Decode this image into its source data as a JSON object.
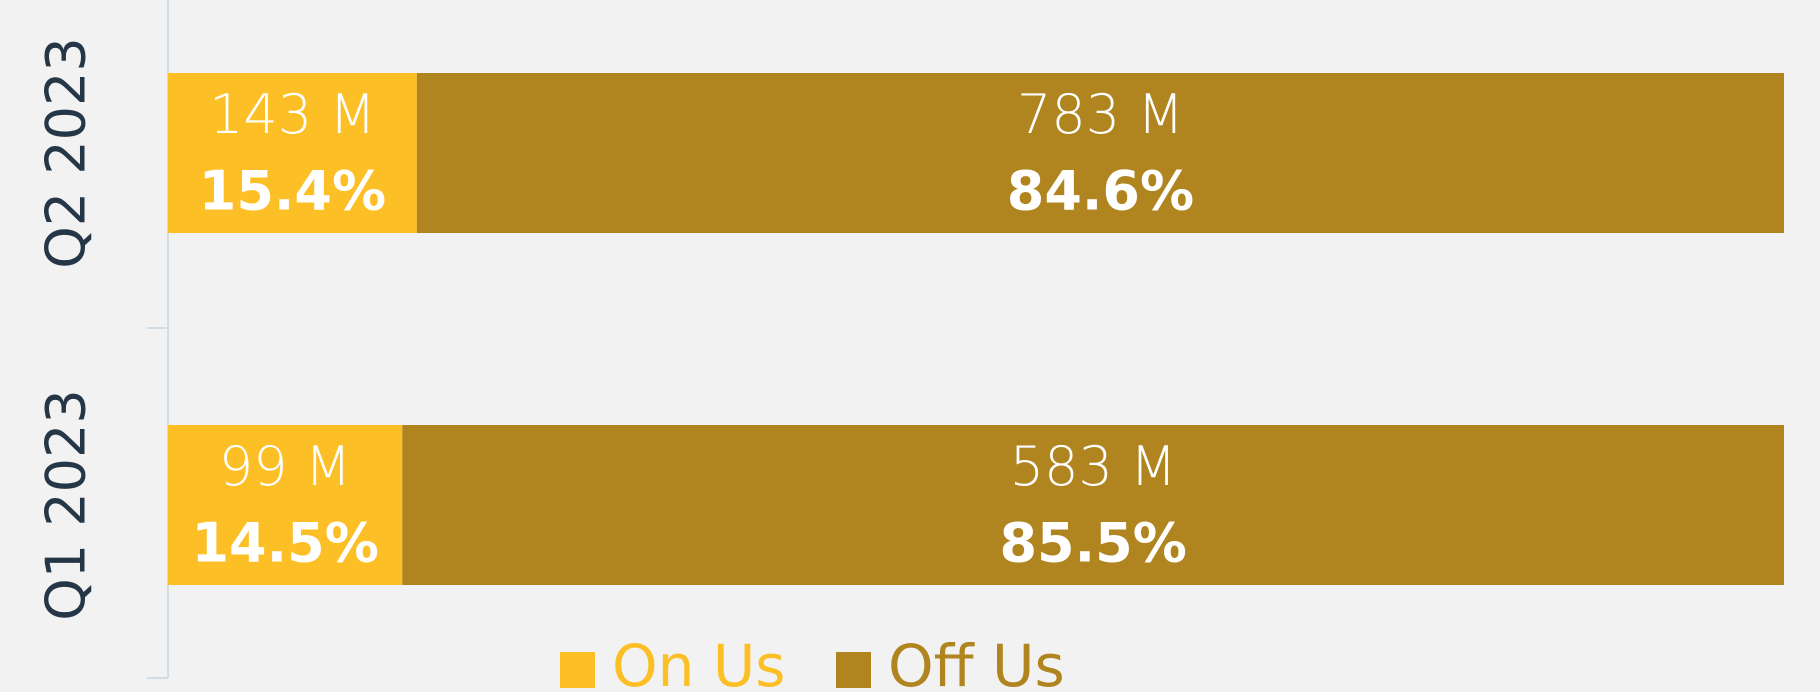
{
  "chart_data": {
    "type": "stacked_barh",
    "categories": [
      "Q2 2023",
      "Q1 2023"
    ],
    "xlim": [
      0,
      100
    ],
    "series": [
      {
        "name": "On Us",
        "color": "#fdbf26",
        "values": [
          15.4,
          14.5
        ],
        "value_labels": [
          "15.4%",
          "14.5%"
        ],
        "amount_labels": [
          "143 M",
          "99 M"
        ]
      },
      {
        "name": "Off Us",
        "color": "#b0841f",
        "values": [
          84.6,
          85.5
        ],
        "value_labels": [
          "84.6%",
          "85.5%"
        ],
        "amount_labels": [
          "783 M",
          "583 M"
        ]
      }
    ],
    "legend": "bottom"
  }
}
